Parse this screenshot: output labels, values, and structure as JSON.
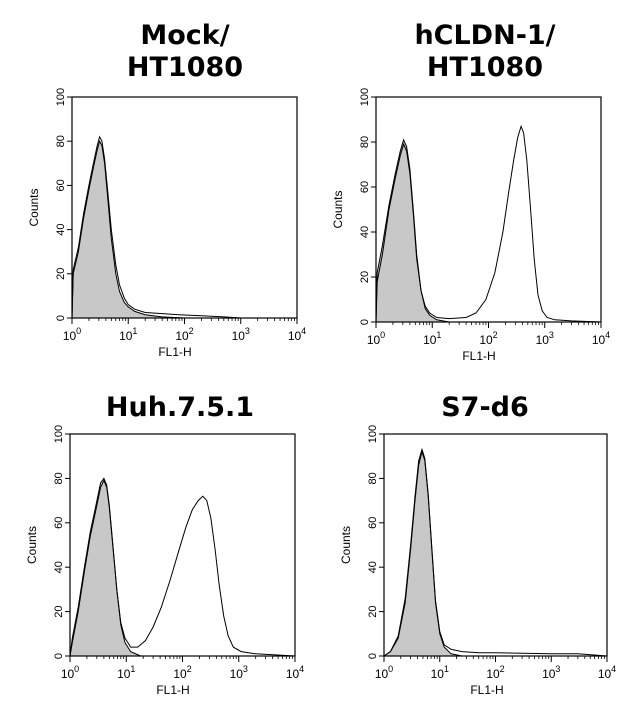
{
  "chart_data": [
    {
      "type": "histogram",
      "title": [
        "Mock/",
        "HT1080"
      ],
      "xlabel": "FL1-H",
      "ylabel": "Counts",
      "xscale": "log",
      "xlim": [
        1,
        10000
      ],
      "ylim": [
        0,
        100
      ],
      "x_ticks": [
        "10^0",
        "10^1",
        "10^2",
        "10^3",
        "10^4"
      ],
      "y_ticks": [
        "0",
        "20",
        "40",
        "60",
        "80",
        "100"
      ],
      "series": [
        {
          "style": "filled-gray",
          "points": [
            [
              1,
              0
            ],
            [
              1.05,
              20
            ],
            [
              1.3,
              30
            ],
            [
              1.6,
              45
            ],
            [
              2,
              58
            ],
            [
              2.4,
              68
            ],
            [
              2.8,
              76
            ],
            [
              3.1,
              80
            ],
            [
              3.4,
              78
            ],
            [
              3.8,
              70
            ],
            [
              4.3,
              55
            ],
            [
              5,
              36
            ],
            [
              6,
              20
            ],
            [
              7,
              12
            ],
            [
              8.5,
              7
            ],
            [
              10,
              5
            ],
            [
              13,
              3
            ],
            [
              20,
              1.5
            ],
            [
              40,
              0.5
            ],
            [
              100,
              0
            ]
          ]
        },
        {
          "style": "outline",
          "points": [
            [
              1,
              0
            ],
            [
              1.05,
              22
            ],
            [
              1.3,
              32
            ],
            [
              1.6,
              47
            ],
            [
              2,
              60
            ],
            [
              2.4,
              70
            ],
            [
              2.8,
              78
            ],
            [
              3.1,
              82
            ],
            [
              3.4,
              80
            ],
            [
              3.8,
              72
            ],
            [
              4.3,
              58
            ],
            [
              5,
              40
            ],
            [
              6,
              24
            ],
            [
              7,
              15
            ],
            [
              8.5,
              9
            ],
            [
              10,
              6
            ],
            [
              13,
              4
            ],
            [
              20,
              2.5
            ],
            [
              40,
              2
            ],
            [
              80,
              1.5
            ],
            [
              200,
              1
            ],
            [
              500,
              0.5
            ],
            [
              1000,
              0
            ]
          ]
        }
      ]
    },
    {
      "type": "histogram",
      "title": [
        "hCLDN-1/",
        "HT1080"
      ],
      "xlabel": "FL1-H",
      "ylabel": "Counts",
      "xscale": "log",
      "xlim": [
        1,
        10000
      ],
      "ylim": [
        0,
        100
      ],
      "x_ticks": [
        "10^0",
        "10^1",
        "10^2",
        "10^3",
        "10^4"
      ],
      "y_ticks": [
        "0",
        "20",
        "40",
        "60",
        "80",
        "100"
      ],
      "series": [
        {
          "style": "filled-gray",
          "points": [
            [
              1,
              0
            ],
            [
              1.05,
              22
            ],
            [
              1.3,
              34
            ],
            [
              1.7,
              52
            ],
            [
              2.2,
              66
            ],
            [
              2.7,
              76
            ],
            [
              3.1,
              81
            ],
            [
              3.5,
              78
            ],
            [
              4,
              68
            ],
            [
              4.6,
              50
            ],
            [
              5.3,
              30
            ],
            [
              6.3,
              14
            ],
            [
              7.5,
              6
            ],
            [
              9,
              3
            ],
            [
              12,
              1
            ],
            [
              20,
              0
            ]
          ]
        },
        {
          "style": "outline",
          "points": [
            [
              1,
              0
            ],
            [
              1.05,
              18
            ],
            [
              1.3,
              30
            ],
            [
              1.7,
              50
            ],
            [
              2.2,
              64
            ],
            [
              2.7,
              74
            ],
            [
              3.1,
              79
            ],
            [
              3.5,
              76
            ],
            [
              4,
              66
            ],
            [
              4.6,
              48
            ],
            [
              5.3,
              28
            ],
            [
              6.3,
              14
            ],
            [
              7.5,
              7
            ],
            [
              9,
              4
            ],
            [
              12,
              2
            ],
            [
              20,
              1.5
            ],
            [
              40,
              2
            ],
            [
              60,
              4
            ],
            [
              90,
              10
            ],
            [
              130,
              22
            ],
            [
              180,
              40
            ],
            [
              230,
              58
            ],
            [
              280,
              72
            ],
            [
              330,
              82
            ],
            [
              380,
              87
            ],
            [
              420,
              84
            ],
            [
              480,
              72
            ],
            [
              560,
              50
            ],
            [
              650,
              28
            ],
            [
              760,
              12
            ],
            [
              900,
              5
            ],
            [
              1100,
              2
            ],
            [
              1500,
              1
            ],
            [
              3000,
              0.5
            ],
            [
              10000,
              0
            ]
          ]
        }
      ]
    },
    {
      "type": "histogram",
      "title": [
        "Huh.7.5.1"
      ],
      "xlabel": "FL1-H",
      "ylabel": "Counts",
      "xscale": "log",
      "xlim": [
        1,
        10000
      ],
      "ylim": [
        0,
        100
      ],
      "x_ticks": [
        "10^0",
        "10^1",
        "10^2",
        "10^3",
        "10^4"
      ],
      "y_ticks": [
        "0",
        "20",
        "40",
        "60",
        "80",
        "100"
      ],
      "series": [
        {
          "style": "filled-gray",
          "points": [
            [
              1,
              0
            ],
            [
              1.1,
              8
            ],
            [
              1.4,
              22
            ],
            [
              1.8,
              40
            ],
            [
              2.3,
              56
            ],
            [
              2.9,
              68
            ],
            [
              3.5,
              78
            ],
            [
              4,
              80
            ],
            [
              4.5,
              77
            ],
            [
              5,
              68
            ],
            [
              5.8,
              50
            ],
            [
              6.8,
              30
            ],
            [
              8,
              14
            ],
            [
              9.5,
              6
            ],
            [
              12,
              2
            ],
            [
              18,
              0
            ]
          ]
        },
        {
          "style": "outline",
          "points": [
            [
              1,
              0
            ],
            [
              1.1,
              6
            ],
            [
              1.4,
              20
            ],
            [
              1.8,
              38
            ],
            [
              2.3,
              54
            ],
            [
              2.9,
              66
            ],
            [
              3.5,
              76
            ],
            [
              4,
              79
            ],
            [
              4.5,
              76
            ],
            [
              5,
              67
            ],
            [
              5.8,
              49
            ],
            [
              6.8,
              30
            ],
            [
              8,
              15
            ],
            [
              9.5,
              8
            ],
            [
              12,
              4
            ],
            [
              16,
              4
            ],
            [
              22,
              7
            ],
            [
              30,
              13
            ],
            [
              42,
              22
            ],
            [
              60,
              34
            ],
            [
              85,
              47
            ],
            [
              115,
              58
            ],
            [
              150,
              66
            ],
            [
              190,
              70
            ],
            [
              230,
              72
            ],
            [
              270,
              70
            ],
            [
              320,
              62
            ],
            [
              380,
              48
            ],
            [
              450,
              32
            ],
            [
              540,
              18
            ],
            [
              650,
              9
            ],
            [
              800,
              4
            ],
            [
              1100,
              2
            ],
            [
              2000,
              1
            ],
            [
              10000,
              0
            ]
          ]
        }
      ]
    },
    {
      "type": "histogram",
      "title": [
        "S7-d6"
      ],
      "xlabel": "FL1-H",
      "ylabel": "Counts",
      "xscale": "log",
      "xlim": [
        1,
        10000
      ],
      "ylim": [
        0,
        100
      ],
      "x_ticks": [
        "10^0",
        "10^1",
        "10^2",
        "10^3",
        "10^4"
      ],
      "y_ticks": [
        "0",
        "20",
        "40",
        "60",
        "80",
        "100"
      ],
      "series": [
        {
          "style": "filled-gray",
          "points": [
            [
              1,
              0
            ],
            [
              1.3,
              2
            ],
            [
              1.8,
              8
            ],
            [
              2.4,
              24
            ],
            [
              3,
              48
            ],
            [
              3.6,
              70
            ],
            [
              4.2,
              86
            ],
            [
              4.8,
              92
            ],
            [
              5.4,
              88
            ],
            [
              6.2,
              72
            ],
            [
              7.2,
              48
            ],
            [
              8.4,
              24
            ],
            [
              10,
              10
            ],
            [
              12,
              4
            ],
            [
              16,
              1
            ],
            [
              25,
              0
            ]
          ]
        },
        {
          "style": "outline",
          "points": [
            [
              1,
              0
            ],
            [
              1.3,
              2
            ],
            [
              1.8,
              9
            ],
            [
              2.4,
              26
            ],
            [
              3,
              50
            ],
            [
              3.6,
              72
            ],
            [
              4.2,
              88
            ],
            [
              4.8,
              93
            ],
            [
              5.4,
              89
            ],
            [
              6.2,
              73
            ],
            [
              7.2,
              49
            ],
            [
              8.4,
              25
            ],
            [
              10,
              11
            ],
            [
              12,
              5
            ],
            [
              16,
              3
            ],
            [
              25,
              2
            ],
            [
              50,
              1.5
            ],
            [
              100,
              1.5
            ],
            [
              300,
              1.2
            ],
            [
              1000,
              1
            ],
            [
              3000,
              1
            ],
            [
              10000,
              0
            ]
          ]
        }
      ]
    }
  ]
}
